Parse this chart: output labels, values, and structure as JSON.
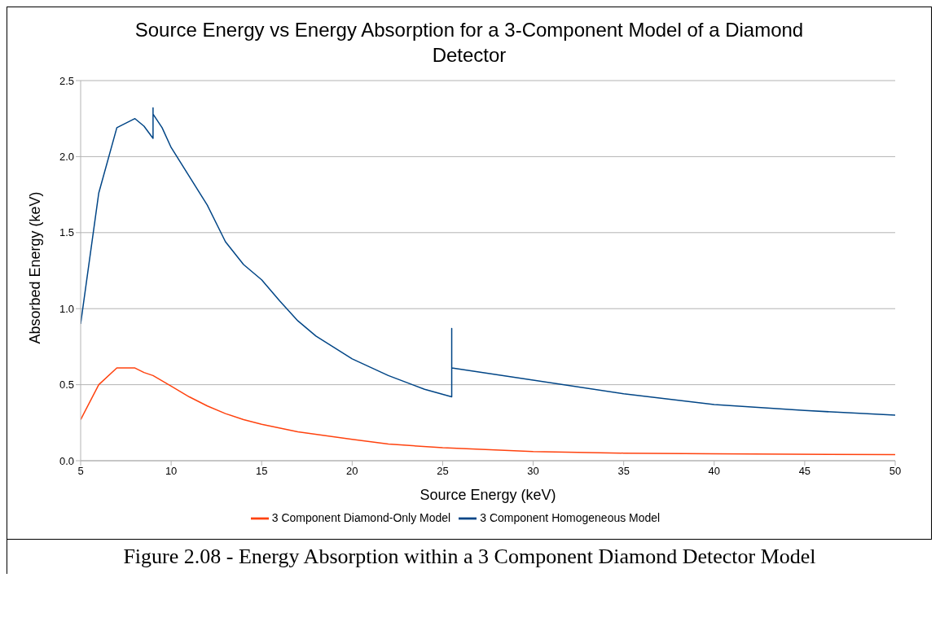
{
  "chart_data": {
    "type": "line",
    "title": "Source Energy vs Energy Absorption for a 3-Component Model of a Diamond Detector",
    "xlabel": "Source Energy (keV)",
    "ylabel": "Absorbed Energy (keV)",
    "annotations": [
      "Figure 2.08 - Energy Absorption within a 3 Component Diamond Detector Model"
    ],
    "series": [
      {
        "name": "3 Component Homogeneous Model",
        "color": "#004586",
        "x": [
          5,
          6,
          7,
          8,
          8.5,
          9,
          9,
          9,
          9.5,
          10,
          11,
          12,
          13,
          14,
          15,
          16,
          17,
          18,
          20,
          22,
          24,
          25.5,
          25.5,
          25.5,
          30,
          35,
          40,
          45,
          50
        ],
        "values": [
          0.9,
          1.76,
          2.19,
          2.25,
          2.2,
          2.12,
          2.32,
          2.28,
          2.19,
          2.06,
          1.87,
          1.68,
          1.44,
          1.29,
          1.19,
          1.05,
          0.92,
          0.82,
          0.67,
          0.56,
          0.47,
          0.42,
          0.87,
          0.61,
          0.53,
          0.44,
          0.37,
          0.33,
          0.3
        ]
      },
      {
        "name": "3 Component Diamond-Only Model",
        "color": "#ff420e",
        "x": [
          5,
          6,
          7,
          8,
          8.5,
          9,
          10,
          11,
          12,
          13,
          14,
          15,
          17,
          20,
          22,
          25,
          30,
          35,
          40,
          50
        ],
        "values": [
          0.27,
          0.5,
          0.61,
          0.61,
          0.58,
          0.56,
          0.49,
          0.42,
          0.36,
          0.31,
          0.27,
          0.24,
          0.19,
          0.14,
          0.11,
          0.085,
          0.06,
          0.05,
          0.045,
          0.04
        ]
      }
    ],
    "xlim": [
      5,
      50
    ],
    "xticks": [
      5,
      10,
      15,
      20,
      25,
      30,
      35,
      40,
      45,
      50
    ],
    "ylim": [
      0,
      2.5
    ],
    "yticks": [
      {
        "value": 0,
        "label": "0.0"
      },
      0.5,
      {
        "value": 1,
        "label": "1.0"
      },
      1.5,
      {
        "value": 2,
        "label": "2.0"
      },
      2.5
    ],
    "grid": "y",
    "legend": "bottom",
    "line_style": "solid"
  }
}
